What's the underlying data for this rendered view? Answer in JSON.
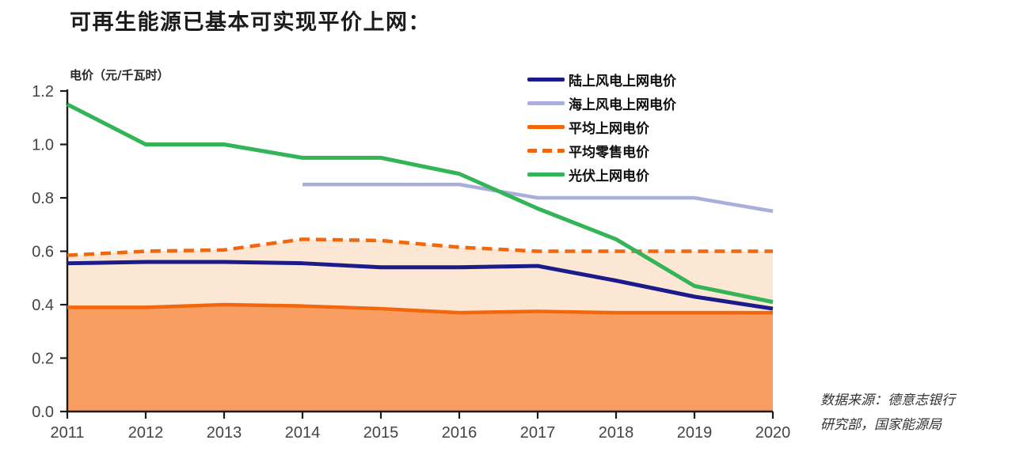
{
  "header": {
    "title": "可再生能源已基本可实现平价上网："
  },
  "source": {
    "line1": "数据来源：德意志银行",
    "line2": "研究部，国家能源局"
  },
  "chart_data": {
    "type": "line",
    "title": "可再生能源已基本可实现平价上网：",
    "xlabel": "",
    "ylabel": "电价（元/千瓦时）",
    "x": [
      2011,
      2012,
      2013,
      2014,
      2015,
      2016,
      2017,
      2018,
      2019,
      2020
    ],
    "x_tick_labels": [
      "2011",
      "2012",
      "2013",
      "2014",
      "2015",
      "2016",
      "2017",
      "2018",
      "2019",
      "2020"
    ],
    "y_tick_labels": [
      "0.0",
      "0.2",
      "0.4",
      "0.6",
      "0.8",
      "1.0",
      "1.2"
    ],
    "ylim": [
      0.0,
      1.2
    ],
    "grid": false,
    "legend_position": "top-center",
    "axis_color": "#1a1a1a",
    "tick_label_color": "#444444",
    "series": [
      {
        "id": "onshore-wind",
        "name": "陆上风电上网电价",
        "color": "#1b1b8a",
        "style": "solid",
        "fill": null,
        "values": [
          0.555,
          0.56,
          0.56,
          0.555,
          0.54,
          0.54,
          0.545,
          0.49,
          0.43,
          0.385
        ]
      },
      {
        "id": "offshore-wind",
        "name": "海上风电上网电价",
        "color": "#a9aedb",
        "style": "solid",
        "fill": null,
        "values": [
          null,
          null,
          null,
          0.85,
          0.85,
          0.85,
          0.8,
          0.8,
          0.8,
          0.75
        ]
      },
      {
        "id": "avg-grid",
        "name": "平均上网电价",
        "color": "#f2660c",
        "style": "solid",
        "fill": "#f99e63",
        "values": [
          0.39,
          0.39,
          0.4,
          0.395,
          0.385,
          0.37,
          0.375,
          0.37,
          0.37,
          0.37
        ]
      },
      {
        "id": "avg-retail",
        "name": "平均零售电价",
        "color": "#f2660c",
        "style": "dashed",
        "fill": "#fce6d4",
        "values": [
          0.585,
          0.6,
          0.605,
          0.645,
          0.64,
          0.615,
          0.6,
          0.6,
          0.6,
          0.6
        ]
      },
      {
        "id": "solar-pv",
        "name": "光伏上网电价",
        "color": "#33b457",
        "style": "solid",
        "fill": null,
        "values": [
          1.15,
          1.0,
          1.0,
          0.95,
          0.95,
          0.89,
          0.76,
          0.645,
          0.47,
          0.41
        ]
      }
    ]
  }
}
